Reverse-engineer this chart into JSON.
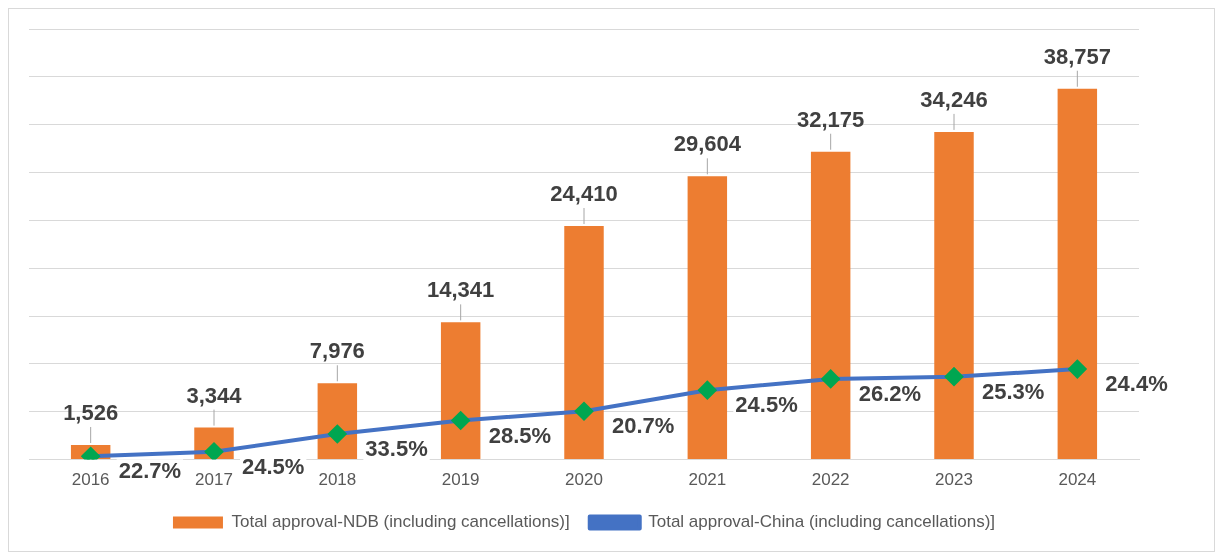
{
  "chart_data": {
    "type": "bar",
    "categories": [
      "2016",
      "2017",
      "2018",
      "2019",
      "2020",
      "2021",
      "2022",
      "2023",
      "2024"
    ],
    "series": [
      {
        "name": "Total approval-NDB (including cancellations)]",
        "color": "#ed7d31",
        "values": [
          1526,
          3344,
          7976,
          14341,
          24410,
          29604,
          32175,
          34246,
          38757
        ],
        "value_labels": [
          "1,526",
          "3,344",
          "7,976",
          "14,341",
          "24,410",
          "29,604",
          "32,175",
          "34,246",
          "38,757"
        ]
      },
      {
        "name": "Total approval-China (including cancellations)]",
        "type": "line",
        "color": "#4472c4",
        "values": [
          346,
          819,
          2672,
          4087,
          5053,
          7253,
          8430,
          8664,
          9457
        ]
      }
    ],
    "annotations": [
      {
        "text": "22.7%",
        "x": "2016",
        "y": 346
      },
      {
        "text": "24.5%",
        "x": "2017",
        "y": 819
      },
      {
        "text": "33.5%",
        "x": "2018",
        "y": 2672
      },
      {
        "text": "28.5%",
        "x": "2019",
        "y": 4087
      },
      {
        "text": "20.7%",
        "x": "2020",
        "y": 5053
      },
      {
        "text": "24.5%",
        "x": "2021",
        "y": 7253
      },
      {
        "text": "26.2%",
        "x": "2022",
        "y": 8430
      },
      {
        "text": "25.3%",
        "x": "2023",
        "y": 8664
      },
      {
        "text": "24.4%",
        "x": "2024",
        "y": 9457
      }
    ],
    "ylim": [
      0,
      45000
    ],
    "yticks": [
      {
        "value": 0,
        "label": null
      },
      {
        "value": 5000,
        "label": null
      },
      {
        "value": 10000,
        "label": null
      },
      {
        "value": 15000,
        "label": null
      },
      {
        "value": 20000,
        "label": null
      },
      {
        "value": 25000,
        "label": null
      },
      {
        "value": 30000,
        "label": null
      },
      {
        "value": 35000,
        "label": null
      },
      {
        "value": 40000,
        "label": null
      },
      {
        "value": 45000,
        "label": null
      }
    ],
    "grid": "y",
    "tick_labels": "x",
    "legend": "bottom",
    "marker": "diamond",
    "line_style": "solid"
  }
}
